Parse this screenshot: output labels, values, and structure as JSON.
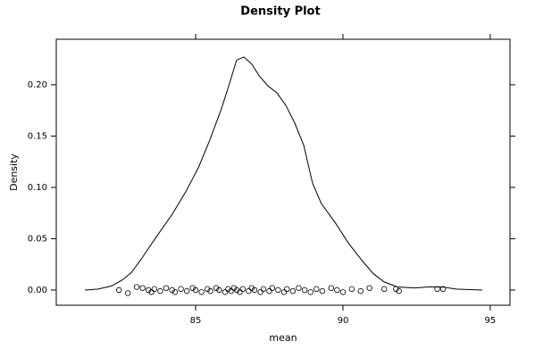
{
  "chart_data": {
    "type": "line",
    "title": "Density Plot",
    "xlabel": "mean",
    "ylabel": "Density",
    "xlim": [
      80.27,
      95.67
    ],
    "ylim": [
      -0.0148,
      0.2443
    ],
    "xticks": [
      85,
      90,
      95
    ],
    "yticks": [
      {
        "value": 0,
        "label": "0.00"
      },
      {
        "value": 0.05,
        "label": "0.05"
      },
      {
        "value": 0.1,
        "label": "0.10"
      },
      {
        "value": 0.15,
        "label": "0.15"
      },
      {
        "value": 0.2,
        "label": "0.20"
      }
    ],
    "series": [
      {
        "type": "line",
        "color": "#000000",
        "x": [
          81.24,
          81.7,
          82.15,
          82.52,
          82.82,
          83.15,
          83.67,
          84.21,
          84.67,
          85.09,
          85.48,
          85.88,
          86.18,
          86.39,
          86.64,
          86.91,
          87.15,
          87.45,
          87.76,
          88.06,
          88.36,
          88.67,
          88.97,
          89.27,
          89.73,
          90.18,
          90.64,
          91.03,
          91.39,
          91.85,
          92.45,
          92.91,
          93.36,
          93.82,
          94.73
        ],
        "values": [
          0,
          0.001,
          0.004,
          0.01,
          0.017,
          0.03,
          0.052,
          0.074,
          0.096,
          0.119,
          0.146,
          0.177,
          0.204,
          0.224,
          0.227,
          0.22,
          0.209,
          0.199,
          0.192,
          0.18,
          0.163,
          0.141,
          0.104,
          0.084,
          0.066,
          0.046,
          0.029,
          0.016,
          0.008,
          0.003,
          0.002,
          0.003,
          0.003,
          0.001,
          0
        ]
      },
      {
        "type": "scatter",
        "color": "#000000",
        "x": [
          82.4,
          82.7,
          83.0,
          83.2,
          83.4,
          83.5,
          83.6,
          83.8,
          84.0,
          84.2,
          84.3,
          84.5,
          84.7,
          84.9,
          85.0,
          85.2,
          85.4,
          85.5,
          85.7,
          85.8,
          86.0,
          86.1,
          86.2,
          86.3,
          86.4,
          86.5,
          86.6,
          86.8,
          86.9,
          87.0,
          87.2,
          87.3,
          87.5,
          87.6,
          87.8,
          88.0,
          88.1,
          88.3,
          88.5,
          88.7,
          88.9,
          89.1,
          89.3,
          89.6,
          89.8,
          90.0,
          90.3,
          90.6,
          90.9,
          91.4,
          91.8,
          91.9,
          93.2,
          93.4
        ],
        "values": [
          0,
          -0.003,
          0.003,
          0.002,
          0,
          -0.002,
          0.001,
          -0.001,
          0.002,
          0,
          -0.002,
          0.001,
          -0.001,
          0.002,
          0,
          -0.002,
          0.001,
          -0.001,
          0.002,
          0,
          -0.002,
          0.001,
          -0.001,
          0.002,
          0,
          -0.002,
          0.001,
          -0.001,
          0.002,
          0,
          -0.002,
          0.001,
          -0.001,
          0.002,
          0,
          -0.002,
          0.001,
          -0.001,
          0.002,
          0,
          -0.002,
          0.001,
          -0.001,
          0.002,
          0,
          -0.002,
          0.001,
          -0.001,
          0.002,
          0.001,
          0.001,
          -0.001,
          0.001,
          0.001
        ]
      }
    ]
  }
}
